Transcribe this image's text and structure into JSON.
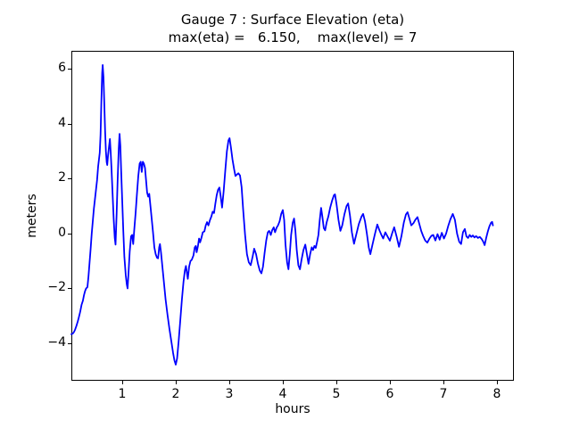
{
  "chart_data": {
    "type": "line",
    "title_line1": "Gauge 7 : Surface Elevation (eta)",
    "title_line2": "max(eta) =   6.150,    max(level) = 7",
    "max_eta": 6.15,
    "max_level": 7,
    "xlabel": "hours",
    "ylabel": "meters",
    "xlim": [
      0.05,
      8.3167
    ],
    "ylim": [
      -5.366,
      6.634
    ],
    "grid": false,
    "legend_position": "none",
    "xticks": [
      {
        "v": 1,
        "label": "1"
      },
      {
        "v": 2,
        "label": "2"
      },
      {
        "v": 3,
        "label": "3"
      },
      {
        "v": 4,
        "label": "4"
      },
      {
        "v": 5,
        "label": "5"
      },
      {
        "v": 6,
        "label": "6"
      },
      {
        "v": 7,
        "label": "7"
      },
      {
        "v": 8,
        "label": "8"
      }
    ],
    "yticks": [
      {
        "v": -4,
        "label": "−4"
      },
      {
        "v": -2,
        "label": "−2"
      },
      {
        "v": 0,
        "label": "0"
      },
      {
        "v": 2,
        "label": "2"
      },
      {
        "v": 4,
        "label": "4"
      },
      {
        "v": 6,
        "label": "6"
      }
    ],
    "series": [
      {
        "name": "eta",
        "color": "#0000ff",
        "points": [
          [
            0.05,
            -3.67
          ],
          [
            0.08,
            -3.64
          ],
          [
            0.1,
            -3.58
          ],
          [
            0.12,
            -3.5
          ],
          [
            0.145,
            -3.36
          ],
          [
            0.17,
            -3.2
          ],
          [
            0.19,
            -3.05
          ],
          [
            0.215,
            -2.85
          ],
          [
            0.24,
            -2.6
          ],
          [
            0.265,
            -2.45
          ],
          [
            0.285,
            -2.25
          ],
          [
            0.305,
            -2.1
          ],
          [
            0.325,
            -2.0
          ],
          [
            0.35,
            -1.95
          ],
          [
            0.37,
            -1.55
          ],
          [
            0.39,
            -1.05
          ],
          [
            0.41,
            -0.55
          ],
          [
            0.43,
            0.0
          ],
          [
            0.45,
            0.45
          ],
          [
            0.47,
            0.9
          ],
          [
            0.49,
            1.25
          ],
          [
            0.51,
            1.6
          ],
          [
            0.53,
            1.95
          ],
          [
            0.55,
            2.45
          ],
          [
            0.565,
            2.7
          ],
          [
            0.58,
            2.95
          ],
          [
            0.595,
            3.6
          ],
          [
            0.61,
            4.8
          ],
          [
            0.625,
            5.85
          ],
          [
            0.635,
            6.15
          ],
          [
            0.65,
            5.7
          ],
          [
            0.665,
            4.75
          ],
          [
            0.68,
            3.75
          ],
          [
            0.695,
            3.0
          ],
          [
            0.71,
            2.6
          ],
          [
            0.72,
            2.5
          ],
          [
            0.735,
            2.85
          ],
          [
            0.755,
            3.2
          ],
          [
            0.77,
            3.45
          ],
          [
            0.785,
            2.95
          ],
          [
            0.8,
            2.35
          ],
          [
            0.82,
            1.45
          ],
          [
            0.84,
            0.55
          ],
          [
            0.86,
            -0.15
          ],
          [
            0.875,
            -0.4
          ],
          [
            0.895,
            0.7
          ],
          [
            0.915,
            2.0
          ],
          [
            0.935,
            3.1
          ],
          [
            0.95,
            3.64
          ],
          [
            0.965,
            3.2
          ],
          [
            0.98,
            2.3
          ],
          [
            1.0,
            1.2
          ],
          [
            1.02,
            0.1
          ],
          [
            1.04,
            -0.85
          ],
          [
            1.065,
            -1.5
          ],
          [
            1.085,
            -1.85
          ],
          [
            1.1,
            -2.0
          ],
          [
            1.12,
            -1.35
          ],
          [
            1.14,
            -0.65
          ],
          [
            1.165,
            -0.1
          ],
          [
            1.185,
            -0.05
          ],
          [
            1.205,
            -0.38
          ],
          [
            1.225,
            0.15
          ],
          [
            1.25,
            0.75
          ],
          [
            1.275,
            1.45
          ],
          [
            1.3,
            2.1
          ],
          [
            1.325,
            2.55
          ],
          [
            1.345,
            2.62
          ],
          [
            1.365,
            2.25
          ],
          [
            1.385,
            2.62
          ],
          [
            1.405,
            2.55
          ],
          [
            1.425,
            2.4
          ],
          [
            1.445,
            1.95
          ],
          [
            1.465,
            1.5
          ],
          [
            1.485,
            1.35
          ],
          [
            1.505,
            1.45
          ],
          [
            1.525,
            1.05
          ],
          [
            1.55,
            0.55
          ],
          [
            1.575,
            0.05
          ],
          [
            1.6,
            -0.5
          ],
          [
            1.625,
            -0.75
          ],
          [
            1.65,
            -0.88
          ],
          [
            1.67,
            -0.9
          ],
          [
            1.69,
            -0.5
          ],
          [
            1.705,
            -0.38
          ],
          [
            1.725,
            -0.7
          ],
          [
            1.75,
            -1.2
          ],
          [
            1.78,
            -1.8
          ],
          [
            1.81,
            -2.4
          ],
          [
            1.845,
            -2.95
          ],
          [
            1.88,
            -3.45
          ],
          [
            1.915,
            -3.9
          ],
          [
            1.95,
            -4.35
          ],
          [
            1.975,
            -4.62
          ],
          [
            2.0,
            -4.78
          ],
          [
            2.025,
            -4.55
          ],
          [
            2.055,
            -3.9
          ],
          [
            2.085,
            -3.15
          ],
          [
            2.115,
            -2.4
          ],
          [
            2.145,
            -1.75
          ],
          [
            2.17,
            -1.35
          ],
          [
            2.19,
            -1.18
          ],
          [
            2.21,
            -1.45
          ],
          [
            2.225,
            -1.65
          ],
          [
            2.25,
            -1.2
          ],
          [
            2.275,
            -1.0
          ],
          [
            2.3,
            -0.95
          ],
          [
            2.33,
            -0.8
          ],
          [
            2.355,
            -0.5
          ],
          [
            2.375,
            -0.45
          ],
          [
            2.39,
            -0.68
          ],
          [
            2.415,
            -0.45
          ],
          [
            2.435,
            -0.18
          ],
          [
            2.455,
            -0.32
          ],
          [
            2.48,
            -0.15
          ],
          [
            2.505,
            0.05
          ],
          [
            2.535,
            0.08
          ],
          [
            2.56,
            0.3
          ],
          [
            2.585,
            0.42
          ],
          [
            2.61,
            0.3
          ],
          [
            2.64,
            0.5
          ],
          [
            2.665,
            0.62
          ],
          [
            2.69,
            0.8
          ],
          [
            2.715,
            0.75
          ],
          [
            2.74,
            1.1
          ],
          [
            2.765,
            1.4
          ],
          [
            2.79,
            1.6
          ],
          [
            2.815,
            1.68
          ],
          [
            2.84,
            1.35
          ],
          [
            2.865,
            0.95
          ],
          [
            2.895,
            1.55
          ],
          [
            2.925,
            2.3
          ],
          [
            2.955,
            3.0
          ],
          [
            2.985,
            3.4
          ],
          [
            3.005,
            3.48
          ],
          [
            3.03,
            3.15
          ],
          [
            3.06,
            2.7
          ],
          [
            3.09,
            2.35
          ],
          [
            3.115,
            2.1
          ],
          [
            3.14,
            2.15
          ],
          [
            3.17,
            2.2
          ],
          [
            3.2,
            2.12
          ],
          [
            3.23,
            1.7
          ],
          [
            3.26,
            0.85
          ],
          [
            3.295,
            -0.05
          ],
          [
            3.33,
            -0.75
          ],
          [
            3.365,
            -1.05
          ],
          [
            3.4,
            -1.15
          ],
          [
            3.435,
            -0.85
          ],
          [
            3.465,
            -0.55
          ],
          [
            3.5,
            -0.75
          ],
          [
            3.535,
            -1.1
          ],
          [
            3.57,
            -1.35
          ],
          [
            3.6,
            -1.45
          ],
          [
            3.63,
            -1.2
          ],
          [
            3.66,
            -0.7
          ],
          [
            3.69,
            -0.25
          ],
          [
            3.72,
            0.05
          ],
          [
            3.745,
            0.1
          ],
          [
            3.775,
            -0.05
          ],
          [
            3.8,
            0.12
          ],
          [
            3.83,
            0.23
          ],
          [
            3.855,
            0.05
          ],
          [
            3.885,
            0.22
          ],
          [
            3.91,
            0.3
          ],
          [
            3.94,
            0.45
          ],
          [
            3.97,
            0.72
          ],
          [
            4.0,
            0.86
          ],
          [
            4.025,
            0.5
          ],
          [
            4.05,
            -0.4
          ],
          [
            4.08,
            -1.05
          ],
          [
            4.105,
            -1.3
          ],
          [
            4.13,
            -0.75
          ],
          [
            4.155,
            -0.05
          ],
          [
            4.185,
            0.4
          ],
          [
            4.21,
            0.55
          ],
          [
            4.235,
            0.1
          ],
          [
            4.26,
            -0.6
          ],
          [
            4.29,
            -1.15
          ],
          [
            4.32,
            -1.3
          ],
          [
            4.35,
            -0.95
          ],
          [
            4.385,
            -0.6
          ],
          [
            4.42,
            -0.4
          ],
          [
            4.45,
            -0.75
          ],
          [
            4.48,
            -1.1
          ],
          [
            4.51,
            -0.75
          ],
          [
            4.54,
            -0.5
          ],
          [
            4.565,
            -0.6
          ],
          [
            4.59,
            -0.45
          ],
          [
            4.615,
            -0.52
          ],
          [
            4.64,
            -0.3
          ],
          [
            4.665,
            -0.05
          ],
          [
            4.69,
            0.5
          ],
          [
            4.715,
            0.94
          ],
          [
            4.74,
            0.6
          ],
          [
            4.765,
            0.2
          ],
          [
            4.79,
            0.12
          ],
          [
            4.82,
            0.42
          ],
          [
            4.85,
            0.62
          ],
          [
            4.885,
            0.95
          ],
          [
            4.92,
            1.2
          ],
          [
            4.955,
            1.4
          ],
          [
            4.975,
            1.43
          ],
          [
            5.005,
            1.05
          ],
          [
            5.04,
            0.5
          ],
          [
            5.075,
            0.1
          ],
          [
            5.11,
            0.3
          ],
          [
            5.15,
            0.7
          ],
          [
            5.19,
            1.0
          ],
          [
            5.22,
            1.1
          ],
          [
            5.255,
            0.65
          ],
          [
            5.29,
            0.05
          ],
          [
            5.33,
            -0.37
          ],
          [
            5.37,
            -0.05
          ],
          [
            5.42,
            0.35
          ],
          [
            5.47,
            0.62
          ],
          [
            5.5,
            0.72
          ],
          [
            5.535,
            0.45
          ],
          [
            5.57,
            0.0
          ],
          [
            5.605,
            -0.5
          ],
          [
            5.635,
            -0.75
          ],
          [
            5.675,
            -0.4
          ],
          [
            5.72,
            -0.02
          ],
          [
            5.765,
            0.33
          ],
          [
            5.805,
            0.12
          ],
          [
            5.84,
            -0.04
          ],
          [
            5.875,
            -0.18
          ],
          [
            5.915,
            0.05
          ],
          [
            5.955,
            -0.1
          ],
          [
            6.0,
            -0.26
          ],
          [
            6.04,
            0.0
          ],
          [
            6.08,
            0.23
          ],
          [
            6.125,
            -0.1
          ],
          [
            6.17,
            -0.48
          ],
          [
            6.215,
            -0.1
          ],
          [
            6.26,
            0.4
          ],
          [
            6.3,
            0.7
          ],
          [
            6.33,
            0.78
          ],
          [
            6.365,
            0.55
          ],
          [
            6.4,
            0.3
          ],
          [
            6.44,
            0.38
          ],
          [
            6.475,
            0.5
          ],
          [
            6.515,
            0.6
          ],
          [
            6.55,
            0.35
          ],
          [
            6.585,
            0.1
          ],
          [
            6.62,
            -0.08
          ],
          [
            6.66,
            -0.25
          ],
          [
            6.7,
            -0.33
          ],
          [
            6.74,
            -0.18
          ],
          [
            6.775,
            -0.08
          ],
          [
            6.81,
            -0.05
          ],
          [
            6.85,
            -0.25
          ],
          [
            6.89,
            -0.02
          ],
          [
            6.93,
            -0.22
          ],
          [
            6.97,
            0.03
          ],
          [
            7.01,
            -0.18
          ],
          [
            7.05,
            0.0
          ],
          [
            7.09,
            0.28
          ],
          [
            7.13,
            0.52
          ],
          [
            7.175,
            0.72
          ],
          [
            7.215,
            0.5
          ],
          [
            7.255,
            0.0
          ],
          [
            7.295,
            -0.3
          ],
          [
            7.33,
            -0.38
          ],
          [
            7.365,
            0.05
          ],
          [
            7.4,
            0.17
          ],
          [
            7.43,
            -0.1
          ],
          [
            7.46,
            -0.16
          ],
          [
            7.49,
            -0.05
          ],
          [
            7.52,
            -0.12
          ],
          [
            7.55,
            -0.07
          ],
          [
            7.58,
            -0.14
          ],
          [
            7.61,
            -0.09
          ],
          [
            7.645,
            -0.16
          ],
          [
            7.68,
            -0.12
          ],
          [
            7.715,
            -0.2
          ],
          [
            7.745,
            -0.3
          ],
          [
            7.77,
            -0.42
          ],
          [
            7.8,
            -0.15
          ],
          [
            7.83,
            0.08
          ],
          [
            7.86,
            0.27
          ],
          [
            7.89,
            0.4
          ],
          [
            7.91,
            0.43
          ],
          [
            7.925,
            0.3
          ]
        ]
      }
    ]
  }
}
